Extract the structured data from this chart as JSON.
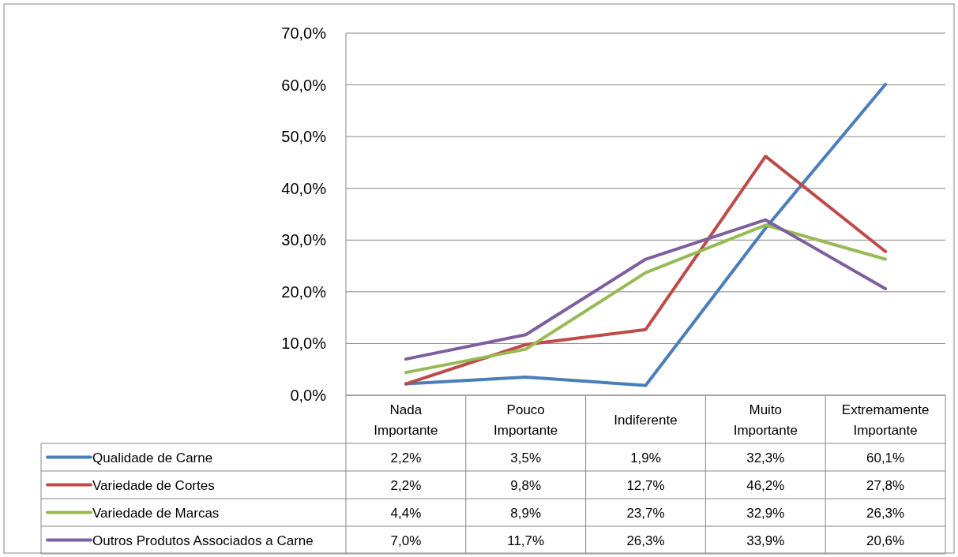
{
  "chart_data": {
    "type": "line",
    "categories": [
      "Nada Importante",
      "Pouco Importante",
      "Indiferente",
      "Muito Importante",
      "Extremamente Importante"
    ],
    "ylim": [
      0,
      70
    ],
    "yticks": [
      {
        "value": 0,
        "label": "0,0%"
      },
      {
        "value": 10,
        "label": "10,0%"
      },
      {
        "value": 20,
        "label": "20,0%"
      },
      {
        "value": 30,
        "label": "30,0%"
      },
      {
        "value": 40,
        "label": "40,0%"
      },
      {
        "value": 50,
        "label": "50,0%"
      },
      {
        "value": 60,
        "label": "60,0%"
      },
      {
        "value": 70,
        "label": "70,0%"
      }
    ],
    "grid": "y",
    "legend": "bottom",
    "marker": "none",
    "line_style": "solid",
    "series": [
      {
        "name": "Qualidade de Carne",
        "color": "#4a7ebb",
        "values": [
          2.2,
          3.5,
          1.9,
          32.3,
          60.1
        ],
        "value_labels": [
          "2,2%",
          "3,5%",
          "1,9%",
          "32,3%",
          "60,1%"
        ]
      },
      {
        "name": "Variedade de Cortes",
        "color": "#be4b48",
        "values": [
          2.2,
          9.8,
          12.7,
          46.2,
          27.8
        ],
        "value_labels": [
          "2,2%",
          "9,8%",
          "12,7%",
          "46,2%",
          "27,8%"
        ]
      },
      {
        "name": "Variedade de Marcas",
        "color": "#98b954",
        "values": [
          4.4,
          8.9,
          23.7,
          32.9,
          26.3
        ],
        "value_labels": [
          "4,4%",
          "8,9%",
          "23,7%",
          "32,9%",
          "26,3%"
        ]
      },
      {
        "name": "Outros Produtos Associados a Carne",
        "color": "#7d5fa0",
        "values": [
          7.0,
          11.7,
          26.3,
          33.9,
          20.6
        ],
        "value_labels": [
          "7,0%",
          "11,7%",
          "26,3%",
          "33,9%",
          "20,6%"
        ]
      }
    ]
  }
}
